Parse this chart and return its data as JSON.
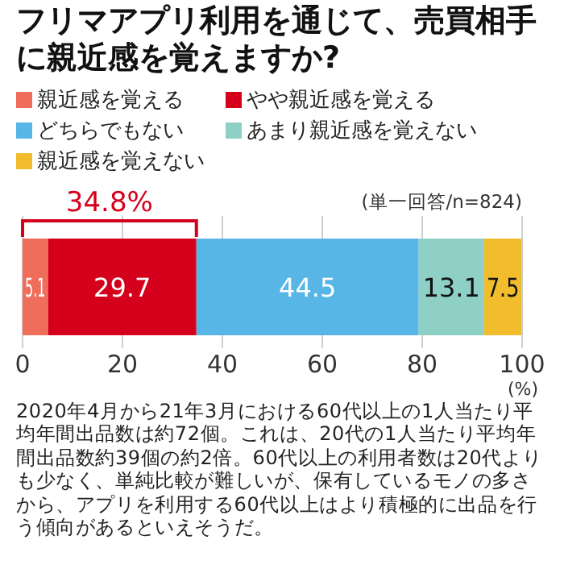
{
  "chart_data": {
    "type": "bar",
    "orientation": "horizontal",
    "stacked": true,
    "title": "フリマアプリ利用を通じて、売買相手に親近感を覚えますか?",
    "categories": [
      null
    ],
    "xlim": [
      0,
      100
    ],
    "xticks": [
      0,
      20,
      40,
      60,
      80,
      100
    ],
    "xlabel": "(%)",
    "grid": "x",
    "legend": "top",
    "data_labels": true,
    "series": [
      {
        "name": "親近感を覚える",
        "color": "#ee6e5b",
        "values": [
          5.1
        ]
      },
      {
        "name": "やや親近感を覚える",
        "color": "#d5001c",
        "values": [
          29.7
        ]
      },
      {
        "name": "どちらでもない",
        "color": "#57b6e6",
        "values": [
          44.5
        ]
      },
      {
        "name": "あまり親近感を覚えない",
        "color": "#8ed0c5",
        "values": [
          13.1
        ]
      },
      {
        "name": "親近感を覚えない",
        "color": "#f1bd2d",
        "values": [
          7.5
        ]
      }
    ],
    "annotations": [
      "34.8%",
      "(単一回答/n=824)",
      "2020年4月から21年3月における60代以上の1人当たり平均年間出品数は約72個。これは、20代の1人当たり平均年間出品数約39個の約2倍。60代以上の利用者数は20代よりも少なく、単純比較が難しいが、保有しているモノの多さから、アプリを利用する60代以上はより積極的に出品を行う傾向があるといえそうだ。"
    ]
  }
}
